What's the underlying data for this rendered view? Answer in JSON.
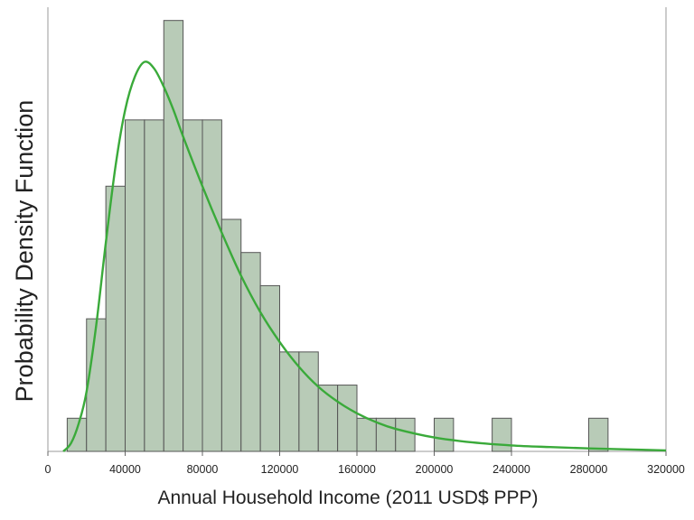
{
  "chart_data": {
    "type": "bar",
    "subtype": "histogram",
    "xlabel": "Annual Household Income (2011 USD$ PPP)",
    "ylabel": "Probability Density Function",
    "xlim": [
      0,
      320000
    ],
    "bin_width": 10000,
    "x_ticks": [
      "0",
      "40000",
      "80000",
      "120000",
      "160000",
      "200000",
      "240000",
      "280000",
      "320000"
    ],
    "x_tick_values": [
      0,
      40000,
      80000,
      120000,
      160000,
      200000,
      240000,
      280000,
      320000
    ],
    "bins": [
      {
        "start": 10000,
        "end": 20000,
        "count": 1
      },
      {
        "start": 20000,
        "end": 30000,
        "count": 4
      },
      {
        "start": 30000,
        "end": 40000,
        "count": 8
      },
      {
        "start": 40000,
        "end": 50000,
        "count": 10
      },
      {
        "start": 50000,
        "end": 60000,
        "count": 10
      },
      {
        "start": 60000,
        "end": 70000,
        "count": 13
      },
      {
        "start": 70000,
        "end": 80000,
        "count": 10
      },
      {
        "start": 80000,
        "end": 90000,
        "count": 10
      },
      {
        "start": 90000,
        "end": 100000,
        "count": 7
      },
      {
        "start": 100000,
        "end": 110000,
        "count": 6
      },
      {
        "start": 110000,
        "end": 120000,
        "count": 5
      },
      {
        "start": 120000,
        "end": 130000,
        "count": 3
      },
      {
        "start": 130000,
        "end": 140000,
        "count": 3
      },
      {
        "start": 140000,
        "end": 150000,
        "count": 2
      },
      {
        "start": 150000,
        "end": 160000,
        "count": 2
      },
      {
        "start": 160000,
        "end": 170000,
        "count": 1
      },
      {
        "start": 170000,
        "end": 180000,
        "count": 1
      },
      {
        "start": 180000,
        "end": 190000,
        "count": 1
      },
      {
        "start": 200000,
        "end": 210000,
        "count": 1
      },
      {
        "start": 230000,
        "end": 240000,
        "count": 1
      },
      {
        "start": 280000,
        "end": 290000,
        "count": 1
      }
    ],
    "ylim": [
      0,
      13.4
    ],
    "curve": {
      "description": "fitted density curve",
      "x": [
        8000,
        12000,
        16000,
        20000,
        25000,
        30000,
        35000,
        40000,
        45000,
        50000,
        55000,
        60000,
        65000,
        70000,
        80000,
        90000,
        100000,
        110000,
        120000,
        130000,
        140000,
        150000,
        160000,
        170000,
        180000,
        200000,
        220000,
        240000,
        260000,
        280000,
        300000,
        320000
      ],
      "y": [
        0.0,
        0.25,
        0.85,
        1.8,
        3.8,
        6.3,
        8.6,
        10.3,
        11.3,
        11.75,
        11.55,
        11.0,
        10.3,
        9.5,
        8.0,
        6.6,
        5.3,
        4.2,
        3.3,
        2.55,
        1.95,
        1.5,
        1.15,
        0.88,
        0.68,
        0.42,
        0.27,
        0.18,
        0.13,
        0.09,
        0.06,
        0.03
      ]
    },
    "grid": false,
    "legend": "none",
    "colors": {
      "bar_fill": "#b8cbb7",
      "bar_stroke": "#555555",
      "curve": "#3aaa3a",
      "axis": "#999999"
    }
  }
}
